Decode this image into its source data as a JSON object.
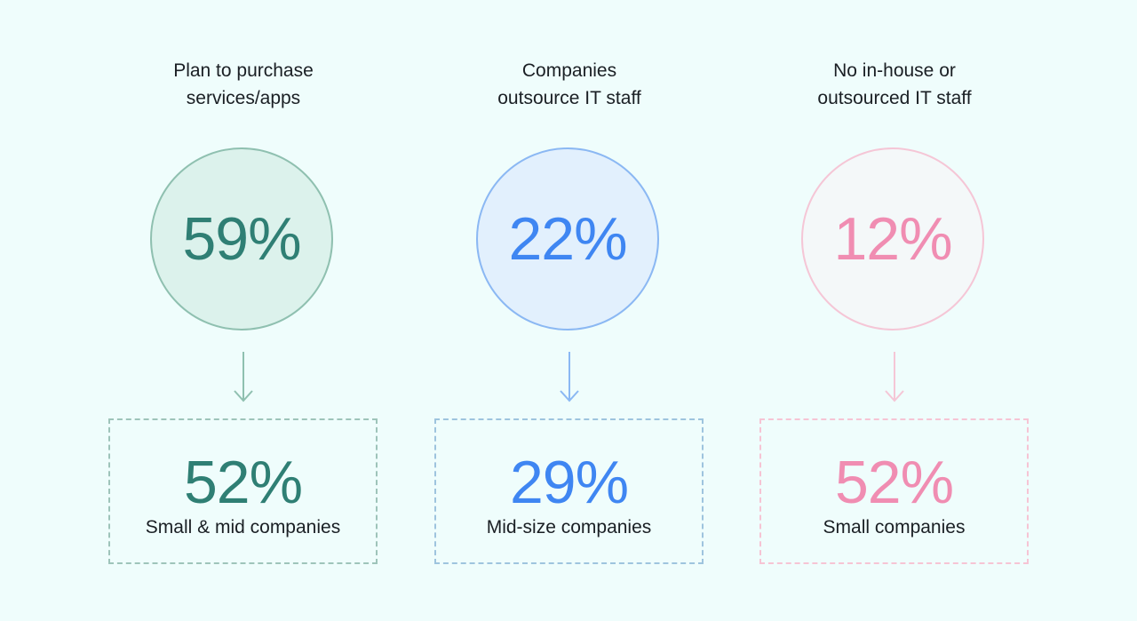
{
  "background": "#effdfc",
  "columns": [
    {
      "heading_line1": "Plan to purchase",
      "heading_line2": "services/apps",
      "circle_value": "59%",
      "box_value": "52%",
      "box_label": "Small & mid companies",
      "color": "#2f7f74",
      "arrow_color": "#8fc0b0"
    },
    {
      "heading_line1": "Companies",
      "heading_line2": "outsource IT staff",
      "circle_value": "22%",
      "box_value": "29%",
      "box_label": "Mid-size companies",
      "color": "#3f86f2",
      "arrow_color": "#8bb8f3"
    },
    {
      "heading_line1": "No in-house or",
      "heading_line2": "outsourced IT staff",
      "circle_value": "12%",
      "box_value": "52%",
      "box_label": "Small companies",
      "color": "#f08db2",
      "arrow_color": "#f5c6d6"
    }
  ]
}
